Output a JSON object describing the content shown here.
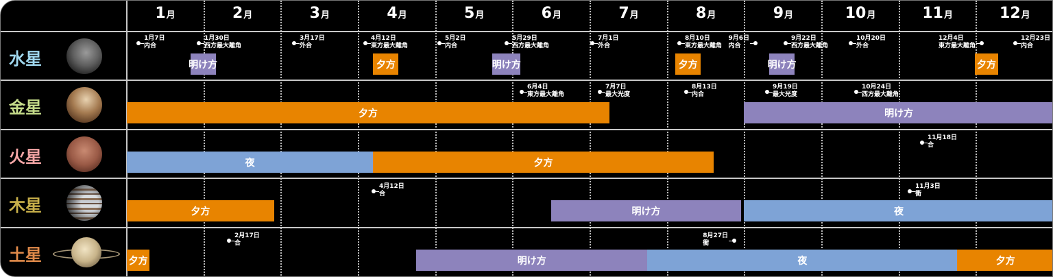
{
  "colors": {
    "evening": "#e88400",
    "morning": "#8d83bc",
    "night": "#7ea3d6"
  },
  "months": [
    {
      "num": "1",
      "unit": "月"
    },
    {
      "num": "2",
      "unit": "月"
    },
    {
      "num": "3",
      "unit": "月"
    },
    {
      "num": "4",
      "unit": "月"
    },
    {
      "num": "5",
      "unit": "月"
    },
    {
      "num": "6",
      "unit": "月"
    },
    {
      "num": "7",
      "unit": "月"
    },
    {
      "num": "8",
      "unit": "月"
    },
    {
      "num": "9",
      "unit": "月"
    },
    {
      "num": "10",
      "unit": "月"
    },
    {
      "num": "11",
      "unit": "月"
    },
    {
      "num": "12",
      "unit": "月"
    }
  ],
  "planets": [
    {
      "name": "水星",
      "color": "#a0d8ef",
      "image": "mercury",
      "bars": [
        {
          "label": "明け方",
          "type": "morning",
          "start": "1/26",
          "end": "2/5"
        },
        {
          "label": "夕方",
          "type": "evening",
          "start": "4/8",
          "end": "4/18"
        },
        {
          "label": "明け方",
          "type": "morning",
          "start": "5/25",
          "end": "6/5"
        },
        {
          "label": "夕方",
          "type": "evening",
          "start": "8/5",
          "end": "8/15"
        },
        {
          "label": "明け方",
          "type": "morning",
          "start": "9/11",
          "end": "9/21"
        },
        {
          "label": "夕方",
          "type": "evening",
          "start": "12/1",
          "end": "12/10"
        }
      ],
      "events": [
        {
          "date": "1月7日",
          "label": "内合"
        },
        {
          "date": "1月30日",
          "label": "西方最大離角"
        },
        {
          "date": "3月17日",
          "label": "外合"
        },
        {
          "date": "4月12日",
          "label": "東方最大離角"
        },
        {
          "date": "5月2日",
          "label": "内合"
        },
        {
          "date": "5月29日",
          "label": "西方最大離角"
        },
        {
          "date": "7月1日",
          "label": "外合"
        },
        {
          "date": "8月10日",
          "label": "東方最大離角"
        },
        {
          "date": "9月6日",
          "label": "内合"
        },
        {
          "date": "9月22日",
          "label": "西方最大離角"
        },
        {
          "date": "10月20日",
          "label": "外合"
        },
        {
          "date": "12月4日",
          "label": "東方最大離角"
        },
        {
          "date": "12月23日",
          "label": "内合"
        }
      ]
    },
    {
      "name": "金星",
      "color": "#c5dc8a",
      "image": "venus",
      "bars": [
        {
          "label": "夕方",
          "type": "evening",
          "start": "1/1",
          "end": "7/10"
        },
        {
          "label": "明け方",
          "type": "morning",
          "start": "9/1",
          "end": "12/31"
        }
      ],
      "events": [
        {
          "date": "6月4日",
          "label": "東方最大離角"
        },
        {
          "date": "7月7日",
          "label": "最大光度"
        },
        {
          "date": "8月13日",
          "label": "内合"
        },
        {
          "date": "9月19日",
          "label": "最大光度"
        },
        {
          "date": "10月24日",
          "label": "西方最大離角"
        }
      ]
    },
    {
      "name": "火星",
      "color": "#f4a6a6",
      "image": "mars",
      "bars": [
        {
          "label": "夜",
          "type": "night",
          "start": "1/1",
          "end": "4/8"
        },
        {
          "label": "夕方",
          "type": "evening",
          "start": "4/8",
          "end": "8/20"
        }
      ],
      "events": [
        {
          "date": "11月18日",
          "label": "合"
        }
      ]
    },
    {
      "name": "木星",
      "color": "#c8b04a",
      "image": "jupiter",
      "bars": [
        {
          "label": "夕方",
          "type": "evening",
          "start": "1/1",
          "end": "2/28"
        },
        {
          "label": "明け方",
          "type": "morning",
          "start": "6/17",
          "end": "8/31"
        },
        {
          "label": "夜",
          "type": "night",
          "start": "9/1",
          "end": "12/31"
        }
      ],
      "events": [
        {
          "date": "4月12日",
          "label": "合"
        },
        {
          "date": "11月3日",
          "label": "衝"
        }
      ]
    },
    {
      "name": "土星",
      "color": "#e08a4a",
      "image": "saturn",
      "bars": [
        {
          "label": "夕方",
          "type": "evening",
          "start": "1/1",
          "end": "1/10"
        },
        {
          "label": "明け方",
          "type": "morning",
          "start": "4/25",
          "end": "7/25"
        },
        {
          "label": "夜",
          "type": "night",
          "start": "7/25",
          "end": "11/24"
        },
        {
          "label": "夕方",
          "type": "evening",
          "start": "11/24",
          "end": "12/31"
        }
      ],
      "events": [
        {
          "date": "2月17日",
          "label": "合"
        },
        {
          "date": "8月27日",
          "label": "衝"
        }
      ]
    }
  ]
}
